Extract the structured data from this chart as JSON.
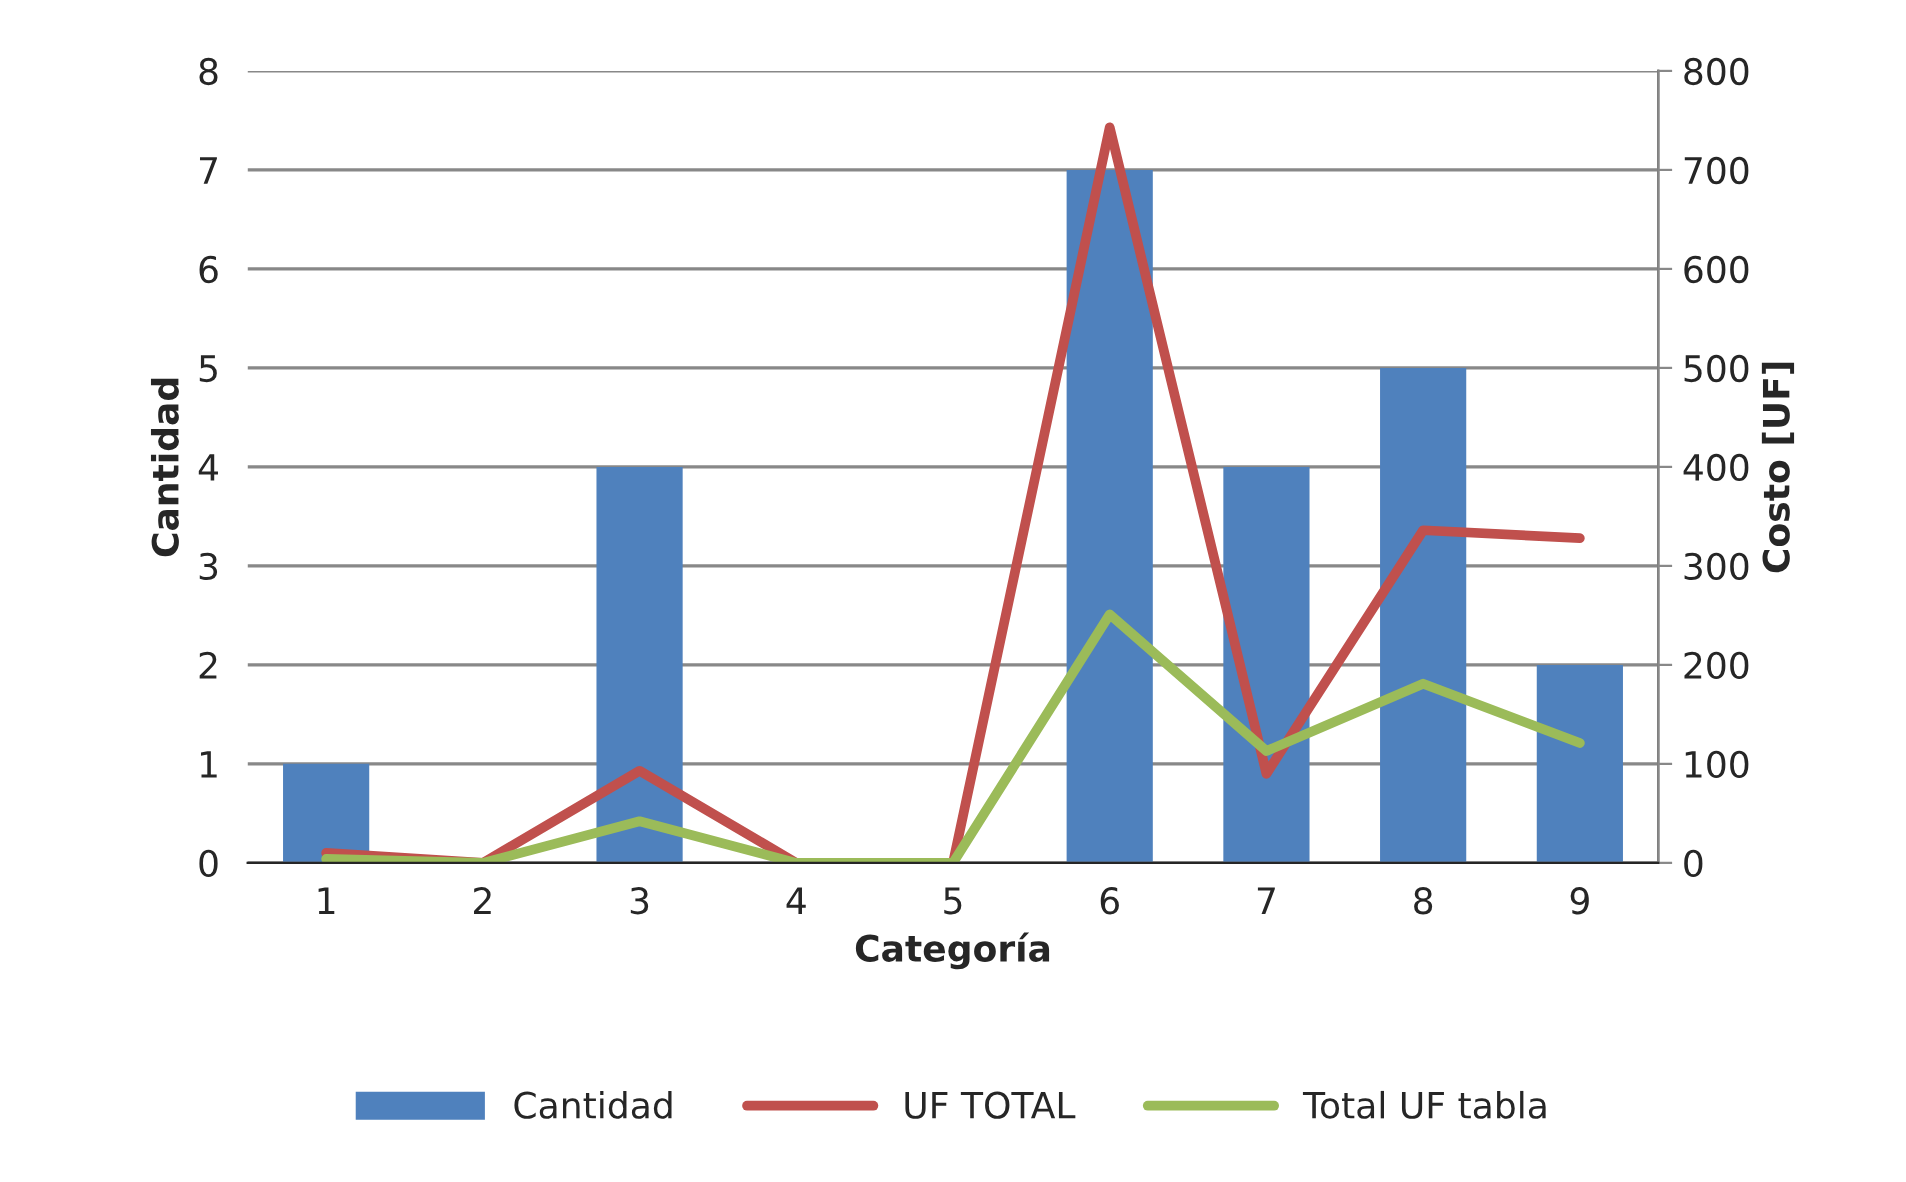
{
  "chart_data": {
    "type": "bar",
    "xlabel": "Categoría",
    "ylabel": "Cantidad",
    "y2label": "Costo [UF]",
    "categories": [
      "1",
      "2",
      "3",
      "4",
      "5",
      "6",
      "7",
      "8",
      "9"
    ],
    "series": [
      {
        "name": "Cantidad",
        "color": "#4f81bd",
        "values": [
          1,
          0,
          4,
          0,
          0,
          7,
          4,
          5,
          2
        ]
      },
      {
        "name": "UF TOTAL",
        "type": "line",
        "axis": "y2",
        "color": "#c0504d",
        "values": [
          10,
          0,
          93,
          0,
          0,
          743,
          90,
          336,
          328
        ]
      },
      {
        "name": "Total UF tabla",
        "type": "line",
        "axis": "y2",
        "color": "#9bbb59",
        "values": [
          4,
          0,
          42,
          0,
          0,
          251,
          113,
          181,
          121
        ]
      }
    ],
    "ylim": [
      0,
      8
    ],
    "yticks": [
      0,
      1,
      2,
      3,
      4,
      5,
      6,
      7,
      8
    ],
    "y2lim": [
      0,
      800
    ],
    "y2ticks": [
      0,
      100,
      200,
      300,
      400,
      500,
      600,
      700,
      800
    ],
    "grid": "y",
    "legend": "bottom",
    "marker": "none",
    "line_style": "solid"
  }
}
